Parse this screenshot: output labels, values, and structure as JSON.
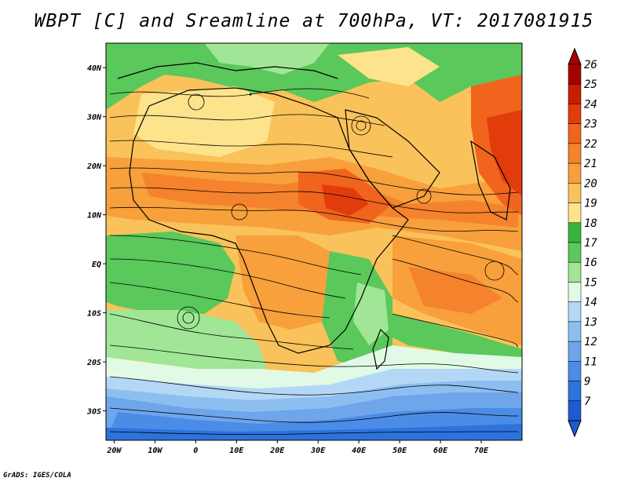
{
  "title": "WBPT [C] and Sreamline at 700hPa, VT: 2017081915",
  "credit": "GrADS: IGES/COLA",
  "map": {
    "lon_range": [
      -22,
      80
    ],
    "lat_range": [
      -36,
      45
    ],
    "lat_ticks": [
      {
        "value": 40,
        "label": "40N"
      },
      {
        "value": 30,
        "label": "30N"
      },
      {
        "value": 20,
        "label": "20N"
      },
      {
        "value": 10,
        "label": "10N"
      },
      {
        "value": 0,
        "label": "EQ"
      },
      {
        "value": -10,
        "label": "10S"
      },
      {
        "value": -20,
        "label": "20S"
      },
      {
        "value": -30,
        "label": "30S"
      }
    ],
    "lon_ticks": [
      {
        "value": -20,
        "label": "20W"
      },
      {
        "value": -10,
        "label": "10W"
      },
      {
        "value": 0,
        "label": "0"
      },
      {
        "value": 10,
        "label": "10E"
      },
      {
        "value": 20,
        "label": "20E"
      },
      {
        "value": 30,
        "label": "30E"
      },
      {
        "value": 40,
        "label": "40E"
      },
      {
        "value": 50,
        "label": "50E"
      },
      {
        "value": 60,
        "label": "60E"
      },
      {
        "value": 70,
        "label": "70E"
      }
    ]
  },
  "colorbar": {
    "levels": [
      {
        "label": "26",
        "color": "#a50000"
      },
      {
        "label": "25",
        "color": "#c81e00"
      },
      {
        "label": "24",
        "color": "#e23c0c"
      },
      {
        "label": "23",
        "color": "#f0641e"
      },
      {
        "label": "22",
        "color": "#f5822d"
      },
      {
        "label": "21",
        "color": "#f8a03c"
      },
      {
        "label": "20",
        "color": "#fac25a"
      },
      {
        "label": "19",
        "color": "#fde38c"
      },
      {
        "label": "18",
        "color": "#37b43c"
      },
      {
        "label": "17",
        "color": "#5ac85a"
      },
      {
        "label": "16",
        "color": "#a0e696"
      },
      {
        "label": "15",
        "color": "#e1fae6"
      },
      {
        "label": "14",
        "color": "#b4d7f5"
      },
      {
        "label": "13",
        "color": "#8cbef0"
      },
      {
        "label": "12",
        "color": "#6ea5eb"
      },
      {
        "label": "11",
        "color": "#4b8ce6"
      },
      {
        "label": "9",
        "color": "#2d73dc"
      },
      {
        "label": "7",
        "color": "#1e5ad2"
      }
    ]
  }
}
